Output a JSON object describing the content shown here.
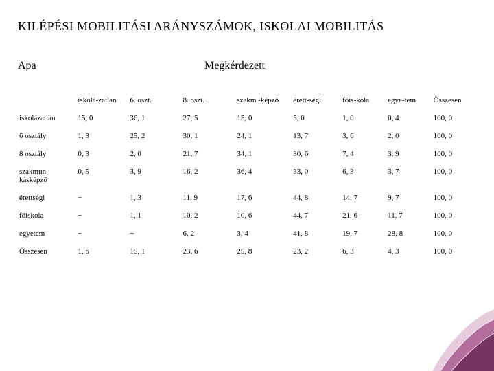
{
  "title": "KILÉPÉSI MOBILITÁSI ARÁNYSZÁMOK, ISKOLAI MOBILITÁS",
  "header_left": "Apa",
  "header_right": "Megkérdezett",
  "table": {
    "columns": [
      "",
      "iskolá-zatlan",
      "6. oszt.",
      "8. oszt.",
      "szakm.-képző",
      "érett-ségi",
      "főis-kola",
      "egye-tem",
      "Összesen"
    ],
    "rows": [
      {
        "label": "iskolázatlan",
        "cells": [
          "15, 0",
          "36, 1",
          "27, 5",
          "15, 0",
          "5, 0",
          "1, 0",
          "0, 4",
          "100, 0"
        ]
      },
      {
        "label": "6 osztály",
        "cells": [
          "1, 3",
          "25, 2",
          "30, 1",
          "24, 1",
          "13, 7",
          "3, 6",
          "2, 0",
          "100, 0"
        ]
      },
      {
        "label": "8 osztály",
        "cells": [
          "0, 3",
          "2, 0",
          "21, 7",
          "34, 1",
          "30, 6",
          "7, 4",
          "3, 9",
          "100, 0"
        ]
      },
      {
        "label": "szakmun-kásképző",
        "cells": [
          "0, 5",
          "3, 9",
          "16, 2",
          "36, 4",
          "33, 0",
          "6, 3",
          "3, 7",
          "100, 0"
        ]
      },
      {
        "label": "érettségi",
        "cells": [
          "−",
          "1, 3",
          "11, 9",
          "17, 6",
          "44, 8",
          "14, 7",
          "9, 7",
          "100, 0"
        ]
      },
      {
        "label": "főiskola",
        "cells": [
          "−",
          "1, 1",
          "10, 2",
          "10, 6",
          "44, 7",
          "21, 6",
          "11, 7",
          "100, 0"
        ]
      },
      {
        "label": "egyetem",
        "cells": [
          "−",
          "−",
          "6, 2",
          "3, 4",
          "41, 8",
          "19, 7",
          "28, 8",
          "100, 0"
        ]
      },
      {
        "label": "Összesen",
        "cells": [
          "1, 6",
          "15, 1",
          "23, 6",
          "25, 8",
          "23, 2",
          "6, 3",
          "4, 3",
          "100, 0"
        ]
      }
    ],
    "col_classes": [
      "c0",
      "c1",
      "c2",
      "c3",
      "c4",
      "c5",
      "c6",
      "c7",
      "c8"
    ]
  },
  "ornament_colors": {
    "dark": "#6b2a5b",
    "mid": "#a14f88",
    "light": "#d9a7c7"
  }
}
